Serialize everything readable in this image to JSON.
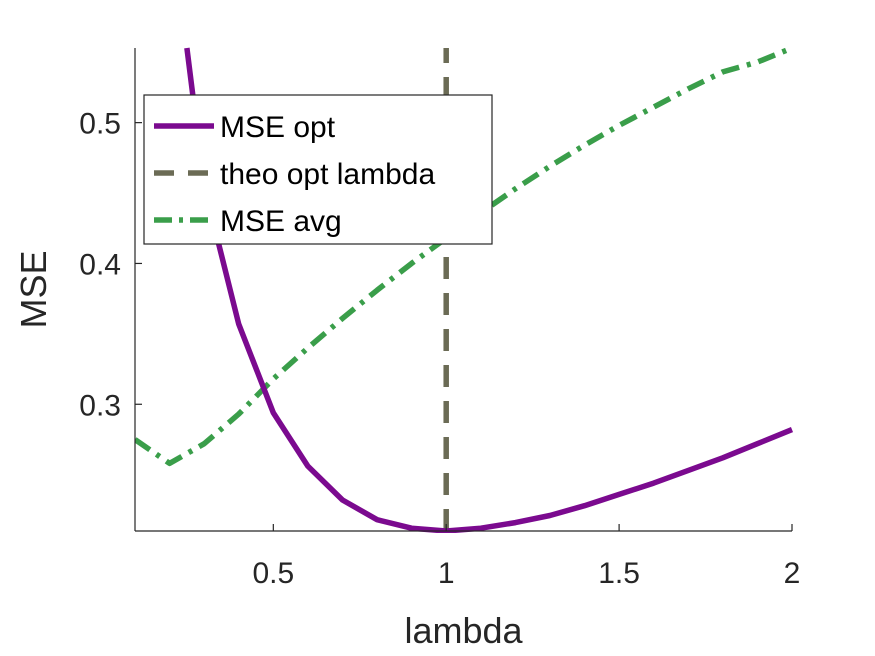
{
  "chart_data": {
    "type": "line",
    "title": "",
    "xlabel": "lambda",
    "ylabel": "MSE",
    "xlim": [
      0.1,
      2
    ],
    "ylim": [
      0.21,
      0.553
    ],
    "xticks": [
      0.5,
      1,
      1.5,
      2
    ],
    "xtick_labels": [
      "0.5",
      "1",
      "1.5",
      "2"
    ],
    "yticks": [
      0.3,
      0.4,
      0.5
    ],
    "ytick_labels": [
      "0.3",
      "0.4",
      "0.5"
    ],
    "grid": false,
    "legend_position": "top-left",
    "series": [
      {
        "name": "MSE opt",
        "style": "solid",
        "color": "#7b0a8f",
        "x": [
          0.25,
          0.3,
          0.4,
          0.5,
          0.6,
          0.7,
          0.8,
          0.9,
          1.0,
          1.1,
          1.2,
          1.3,
          1.4,
          1.5,
          1.6,
          1.7,
          1.8,
          1.9,
          2.0
        ],
        "y": [
          0.553,
          0.455,
          0.357,
          0.294,
          0.256,
          0.232,
          0.218,
          0.212,
          0.21,
          0.212,
          0.216,
          0.221,
          0.228,
          0.236,
          0.244,
          0.253,
          0.262,
          0.272,
          0.282
        ]
      },
      {
        "name": "theo opt lambda",
        "style": "dashed",
        "color": "#6b6b55",
        "x": [
          1.0,
          1.0
        ],
        "y": [
          0.21,
          0.553
        ]
      },
      {
        "name": "MSE avg",
        "style": "dashdot",
        "color": "#3a9e4a",
        "x": [
          0.1,
          0.2,
          0.3,
          0.4,
          0.5,
          0.6,
          0.7,
          0.8,
          0.9,
          1.0,
          1.1,
          1.2,
          1.3,
          1.4,
          1.5,
          1.6,
          1.7,
          1.8,
          1.9,
          2.0
        ],
        "y": [
          0.275,
          0.258,
          0.272,
          0.293,
          0.318,
          0.34,
          0.361,
          0.381,
          0.4,
          0.418,
          0.436,
          0.453,
          0.469,
          0.484,
          0.498,
          0.511,
          0.524,
          0.536,
          0.543,
          0.553
        ]
      }
    ]
  }
}
